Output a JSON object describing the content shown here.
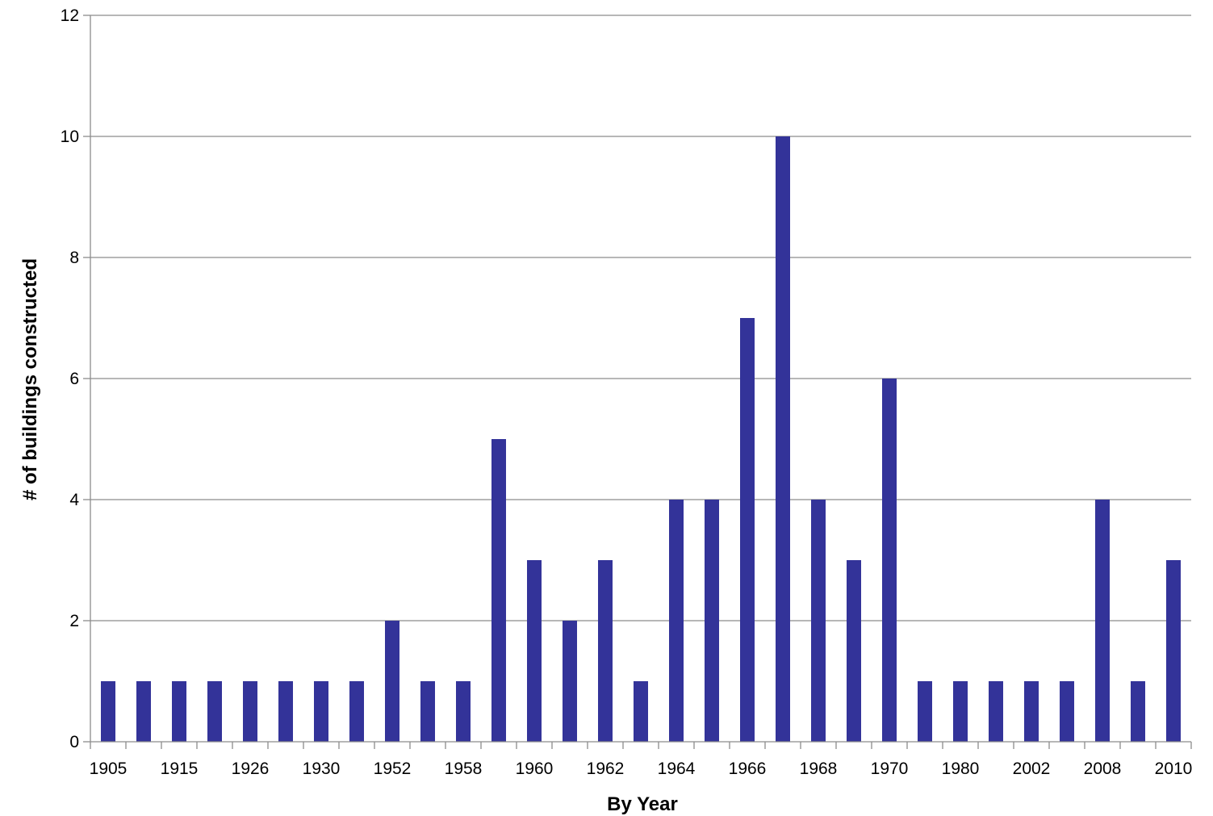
{
  "chart_data": {
    "type": "bar",
    "title": "",
    "xlabel": "By Year",
    "ylabel": "# of buildings constructed",
    "ylim": [
      0,
      12
    ],
    "yticks": [
      0,
      2,
      4,
      6,
      8,
      10,
      12
    ],
    "grid": true,
    "legend": "none",
    "categories": [
      "1905",
      "",
      "1915",
      "",
      "1926",
      "",
      "1930",
      "",
      "1952",
      "",
      "1958",
      "",
      "1960",
      "",
      "1962",
      "",
      "1964",
      "",
      "1966",
      "",
      "1968",
      "",
      "1970",
      "",
      "1980",
      "",
      "2002",
      "",
      "2008",
      "",
      "2010"
    ],
    "values": [
      1,
      1,
      1,
      1,
      1,
      1,
      1,
      1,
      2,
      1,
      1,
      5,
      3,
      2,
      3,
      1,
      4,
      4,
      7,
      10,
      4,
      3,
      6,
      1,
      1,
      1,
      1,
      1,
      4,
      1,
      3
    ],
    "colors": {
      "bar": "#333399",
      "grid": "#8c8c8c",
      "axis": "#8c8c8c"
    }
  }
}
